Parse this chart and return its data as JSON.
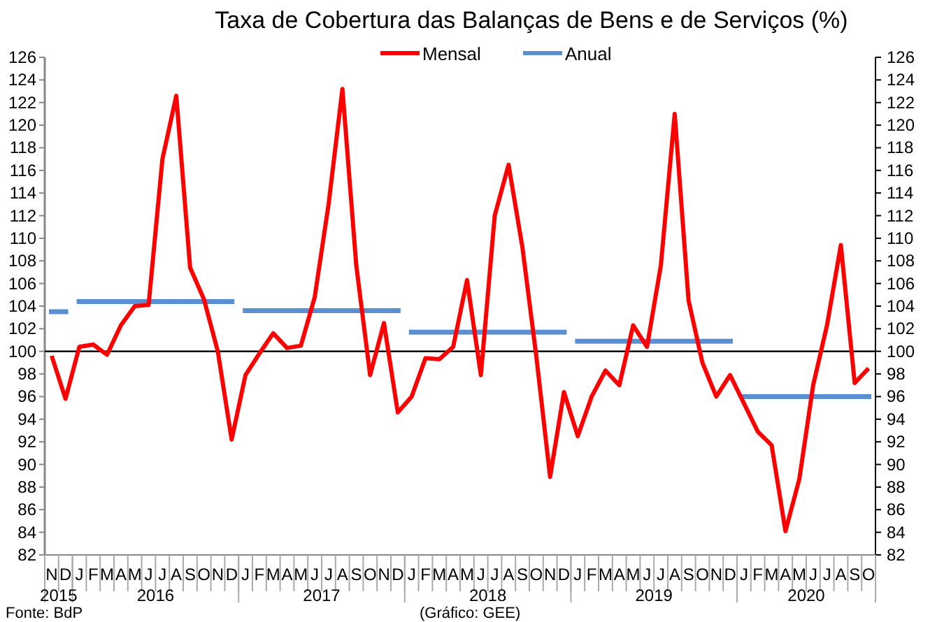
{
  "chart_data": {
    "type": "line",
    "title": "Taxa de Cobertura das Balanças de Bens e de Serviços (%)",
    "categories": [
      "N",
      "D",
      "J",
      "F",
      "M",
      "A",
      "M",
      "J",
      "J",
      "A",
      "S",
      "O",
      "N",
      "D",
      "J",
      "F",
      "M",
      "A",
      "M",
      "J",
      "J",
      "A",
      "S",
      "O",
      "N",
      "D",
      "J",
      "F",
      "M",
      "A",
      "M",
      "J",
      "J",
      "A",
      "S",
      "O",
      "N",
      "D",
      "J",
      "F",
      "M",
      "A",
      "M",
      "J",
      "J",
      "A",
      "S",
      "O",
      "N",
      "D",
      "J",
      "F",
      "M",
      "A",
      "M",
      "J",
      "J",
      "A",
      "S",
      "O"
    ],
    "series": [
      {
        "name": "Mensal",
        "color": "#ff0000",
        "values": [
          99.6,
          95.8,
          100.4,
          100.6,
          99.7,
          102.3,
          104.0,
          104.1,
          117.0,
          122.6,
          107.4,
          104.6,
          100.0,
          92.2,
          97.9,
          99.8,
          101.6,
          100.3,
          100.5,
          104.8,
          113.0,
          123.2,
          107.6,
          97.9,
          102.5,
          94.6,
          96.0,
          99.4,
          99.3,
          100.4,
          106.3,
          97.9,
          112.0,
          116.5,
          109.2,
          99.6,
          88.9,
          96.4,
          92.5,
          96.0,
          98.3,
          97.0,
          102.3,
          100.4,
          107.6,
          121.0,
          104.5,
          99.0,
          96.0,
          97.9,
          95.4,
          92.9,
          91.7,
          84.1,
          88.7,
          97.0,
          102.3,
          109.4,
          97.2,
          98.5
        ]
      },
      {
        "name": "Anual",
        "color": "#5b8fd0",
        "type": "step",
        "values": [
          103.5,
          103.5,
          104.4,
          104.4,
          104.4,
          104.4,
          104.4,
          104.4,
          104.4,
          104.4,
          104.4,
          104.4,
          104.4,
          104.4,
          103.6,
          103.6,
          103.6,
          103.6,
          103.6,
          103.6,
          103.6,
          103.6,
          103.6,
          103.6,
          103.6,
          103.6,
          101.7,
          101.7,
          101.7,
          101.7,
          101.7,
          101.7,
          101.7,
          101.7,
          101.7,
          101.7,
          101.7,
          101.7,
          100.9,
          100.9,
          100.9,
          100.9,
          100.9,
          100.9,
          100.9,
          100.9,
          100.9,
          100.9,
          100.9,
          100.9,
          96.0,
          96.0,
          96.0,
          96.0,
          96.0,
          96.0,
          96.0,
          96.0,
          96.0,
          96.0
        ]
      }
    ],
    "ylim": [
      82,
      126
    ],
    "yticks": [
      82,
      84,
      86,
      88,
      90,
      92,
      94,
      96,
      98,
      100,
      102,
      104,
      106,
      108,
      110,
      112,
      114,
      116,
      118,
      120,
      122,
      124,
      126
    ],
    "y2lim": [
      82,
      126
    ],
    "y2ticks": [
      82,
      84,
      86,
      88,
      90,
      92,
      94,
      96,
      98,
      100,
      102,
      104,
      106,
      108,
      110,
      112,
      114,
      116,
      118,
      120,
      122,
      124,
      126
    ],
    "ref_lines": [
      {
        "axis": "y",
        "value": 100,
        "color": "#000000"
      }
    ],
    "legend": "top",
    "grid": false,
    "marker": "none",
    "line_style": "solid",
    "annotations": [
      "2015",
      "2016",
      "2017",
      "2018",
      "2019",
      "2020",
      "Fonte: BdP",
      "(Gráfico: GEE)"
    ]
  }
}
